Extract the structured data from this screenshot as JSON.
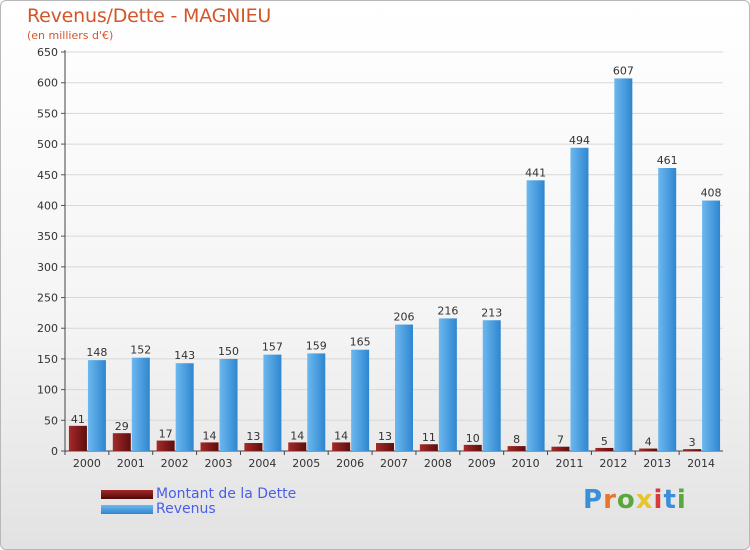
{
  "chart_data": {
    "type": "bar",
    "title": "Revenus/Dette - MAGNIEU",
    "subtitle": "(en milliers d'€)",
    "categories": [
      "2000",
      "2001",
      "2002",
      "2003",
      "2004",
      "2005",
      "2006",
      "2007",
      "2008",
      "2009",
      "2010",
      "2011",
      "2012",
      "2013",
      "2014"
    ],
    "series": [
      {
        "name": "Montant de la Dette",
        "color": "#8b1a1a",
        "values": [
          41,
          29,
          17,
          14,
          13,
          14,
          14,
          13,
          11,
          10,
          8,
          7,
          5,
          4,
          3
        ]
      },
      {
        "name": "Revenus",
        "color": "#4da3e6",
        "values": [
          148,
          152,
          143,
          150,
          157,
          159,
          165,
          206,
          216,
          213,
          441,
          494,
          607,
          461,
          408
        ]
      }
    ],
    "ylim": [
      0,
      650
    ],
    "yticks": [
      0,
      50,
      100,
      150,
      200,
      250,
      300,
      350,
      400,
      450,
      500,
      550,
      600,
      650
    ],
    "grid": true,
    "legend_position": "bottom-left"
  },
  "branding": {
    "logo_text": "Proxiti",
    "letter_colors": [
      "#3a8fd8",
      "#e8752a",
      "#59a83c",
      "#e8c52a",
      "#d83a3a",
      "#3a8fd8",
      "#59a83c"
    ]
  }
}
